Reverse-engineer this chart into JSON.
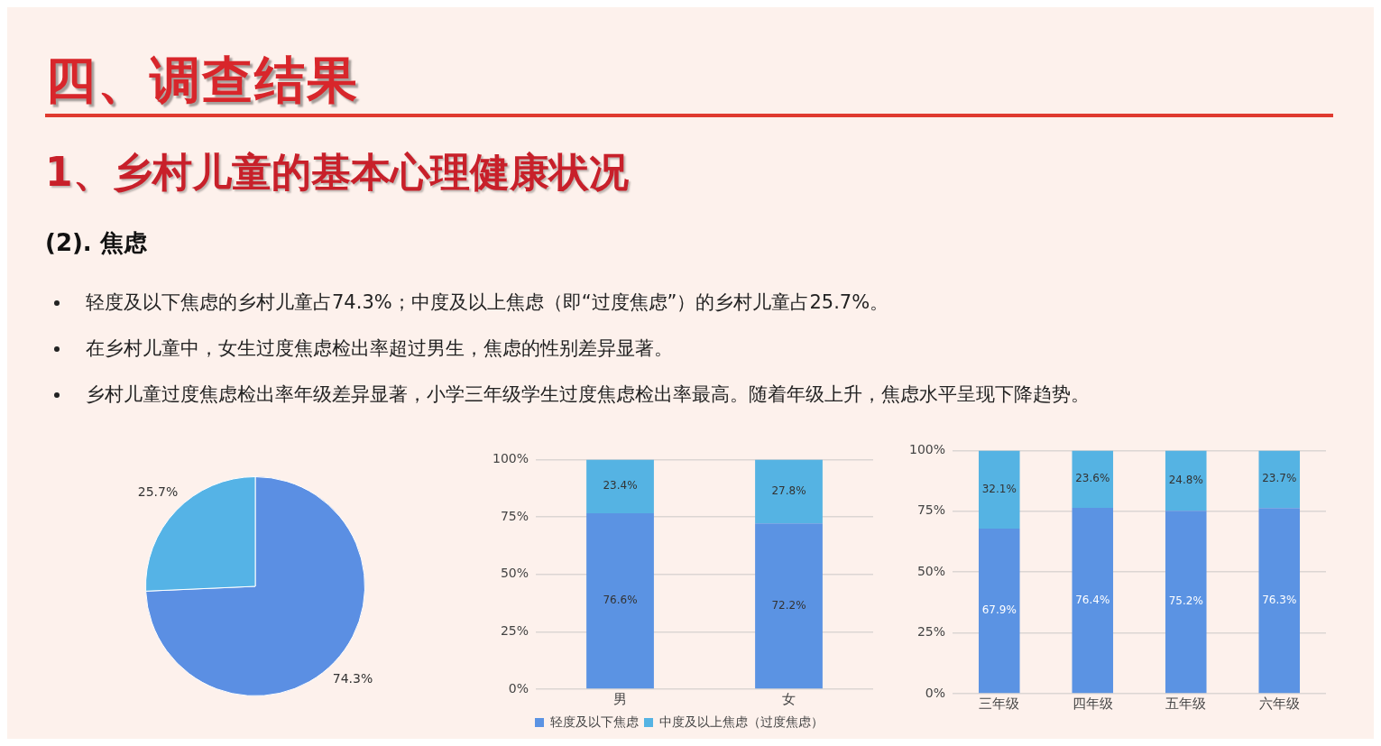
{
  "chart_data": [
    {
      "type": "pie",
      "title": "四、调查结果",
      "subtitle": "1、乡村儿童的基本心理健康状况",
      "annotations": [
        "(2). 焦虑",
        "轻度及以下焦虑的乡村儿童占74.3%；中度及以上焦虑（即“过度焦虑”）的乡村儿童占25.7%。",
        "在乡村儿童中，女生过度焦虑检出率超过男生，焦虑的性别差异显著。",
        "乡村儿童过度焦虑检出率年级差异显著，小学三年级学生过度焦虑检出率最高。随着年级上升，焦虑水平呈现下降趋势。"
      ],
      "categories": [
        null,
        null
      ],
      "values": [
        74.3,
        25.7
      ],
      "colors": [
        "#5b8fe3",
        "#55b3e6"
      ],
      "value_labels": [
        "74.3%",
        "25.7%"
      ]
    },
    {
      "type": "bar",
      "stacked": true,
      "categories": [
        "男",
        "女"
      ],
      "series": [
        {
          "name": "轻度及以下焦虑",
          "color": "#5b93e3",
          "values": [
            76.6,
            72.2
          ],
          "value_labels": [
            "76.6%",
            "72.2%"
          ]
        },
        {
          "name": "中度及以上焦虑（过度焦虑）",
          "color": "#55b3e3",
          "values": [
            23.4,
            27.8
          ],
          "value_labels": [
            "23.4%",
            "27.8%"
          ]
        }
      ],
      "ylim": [
        0,
        100
      ],
      "yticks": [
        {
          "value": 0,
          "label": "0%"
        },
        {
          "value": 25,
          "label": "25%"
        },
        {
          "value": 50,
          "label": "50%"
        },
        {
          "value": 75,
          "label": "75%"
        },
        {
          "value": 100,
          "label": "100%"
        }
      ],
      "grid": "y",
      "legend": "bottom"
    },
    {
      "type": "bar",
      "stacked": true,
      "categories": [
        "三年级",
        "四年级",
        "五年级",
        "六年级"
      ],
      "series": [
        {
          "color": "#5b93e3",
          "values": [
            67.9,
            76.4,
            75.2,
            76.3
          ],
          "value_labels": [
            "67.9%",
            "76.4%",
            "75.2%",
            "76.3%"
          ]
        },
        {
          "color": "#55b3e3",
          "values": [
            32.1,
            23.6,
            24.8,
            23.7
          ],
          "value_labels": [
            "32.1%",
            "23.6%",
            "24.8%",
            "23.7%"
          ]
        }
      ],
      "ylim": [
        0,
        100
      ],
      "yticks": [
        {
          "value": 0,
          "label": "0%"
        },
        {
          "value": 25,
          "label": "25%"
        },
        {
          "value": 50,
          "label": "50%"
        },
        {
          "value": 75,
          "label": "75%"
        },
        {
          "value": 100,
          "label": "100%"
        }
      ],
      "grid": "y"
    }
  ]
}
